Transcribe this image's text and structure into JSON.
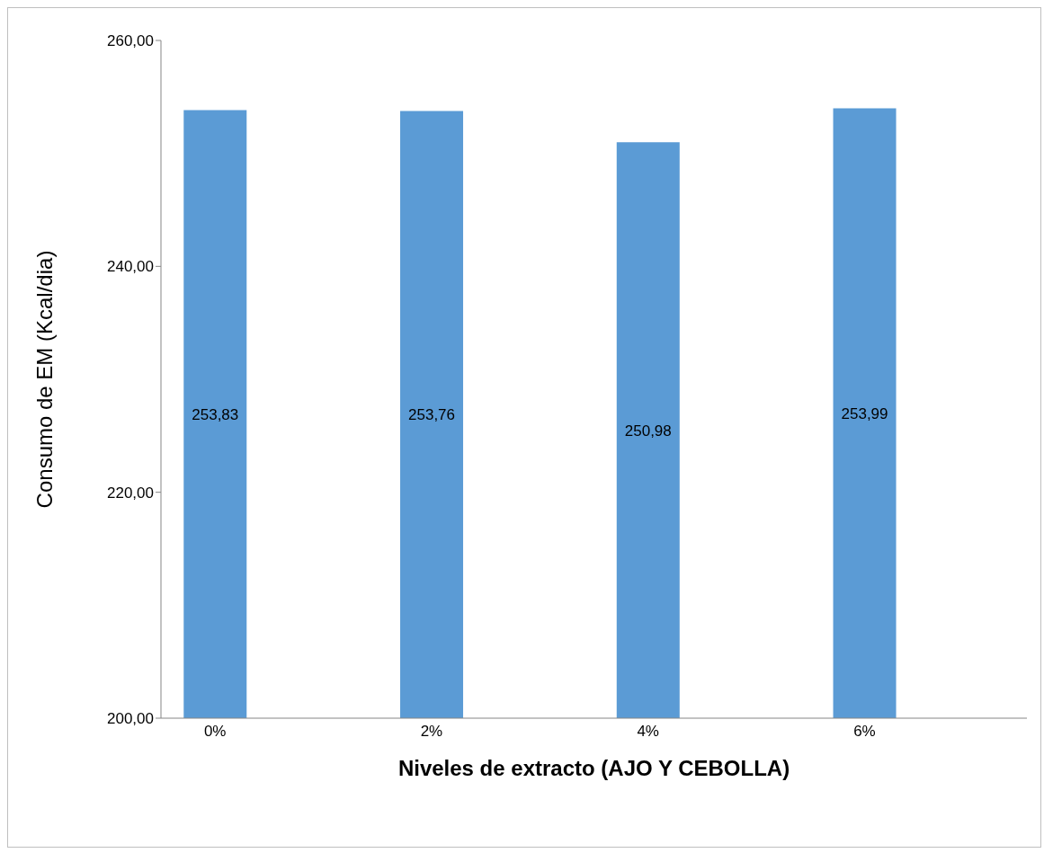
{
  "chart_data": {
    "type": "bar",
    "xlabel": "Niveles de extracto (AJO Y CEBOLLA)",
    "ylabel": "Consumo de EM (Kcal/dia)",
    "categories": [
      "0%",
      null,
      "2%",
      null,
      "4%",
      null,
      "6%",
      null
    ],
    "values": [
      253.83,
      null,
      253.76,
      null,
      250.98,
      null,
      253.99,
      null
    ],
    "value_labels": [
      "253,83",
      null,
      "253,76",
      null,
      "250,98",
      null,
      "253,99",
      null
    ],
    "color": "#5b9bd5",
    "ylim": [
      200,
      260
    ],
    "yticks": [
      {
        "value": 200,
        "label": "200,00"
      },
      {
        "value": 220,
        "label": "220,00"
      },
      {
        "value": 240,
        "label": "240,00"
      },
      {
        "value": 260,
        "label": "260,00"
      }
    ],
    "grid": false,
    "legend": false
  }
}
